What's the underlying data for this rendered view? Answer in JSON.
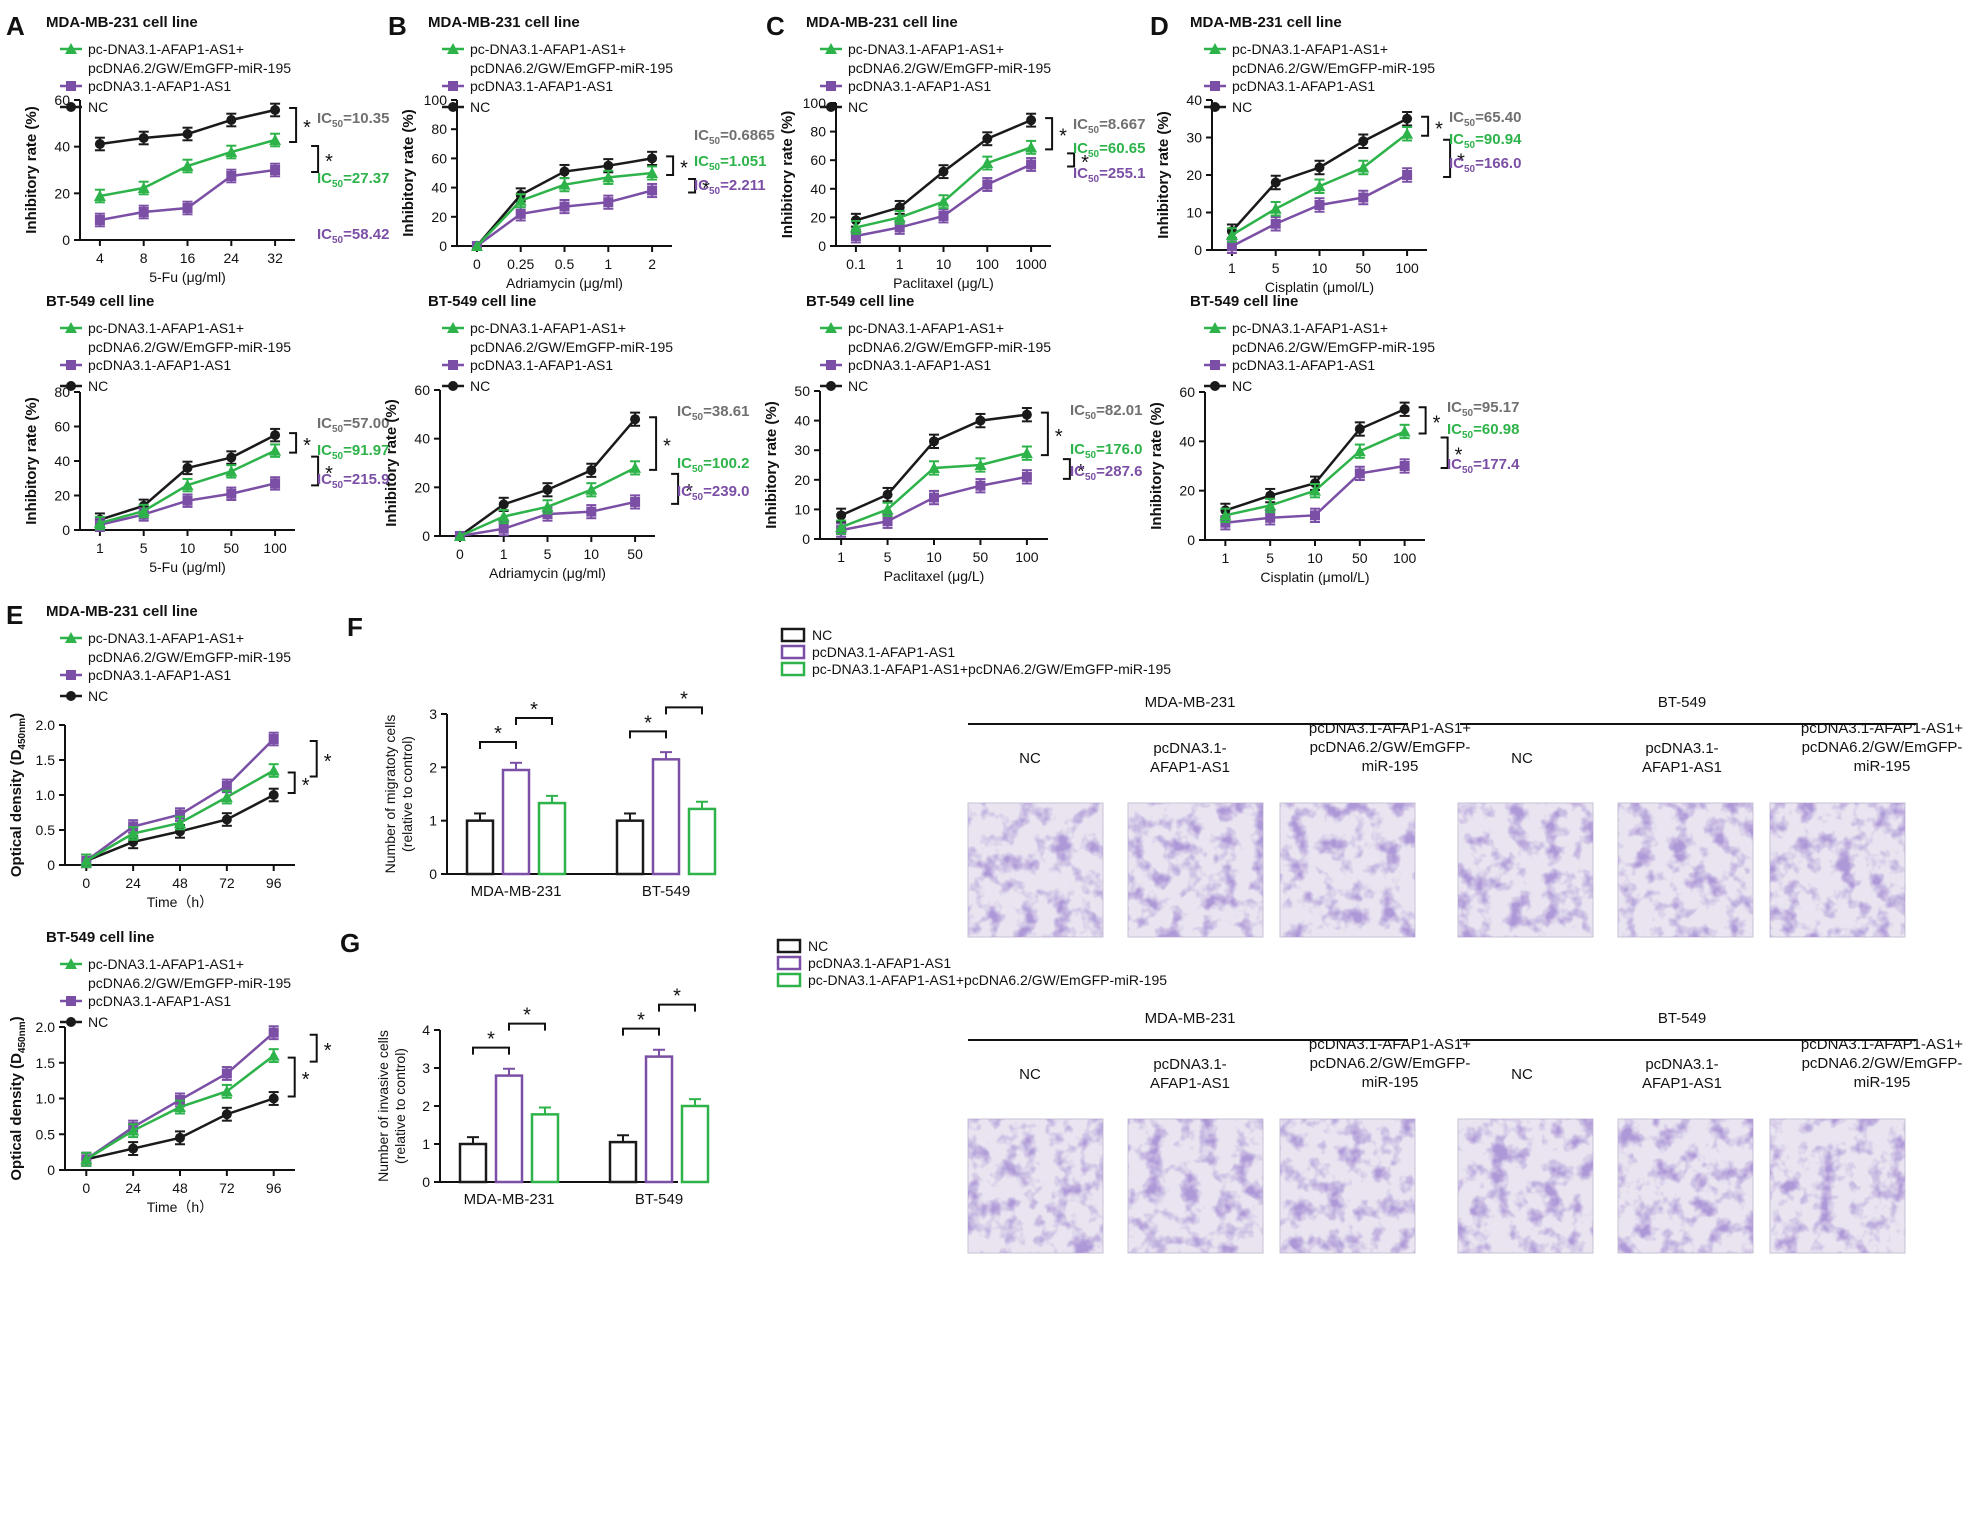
{
  "colors": {
    "NC": "#1a1a1a",
    "oe": "#7b4fa5",
    "combo": "#2db34a",
    "ic_nc": "#707070"
  },
  "legend_labels": {
    "combo_a": "pc-DNA3.1-AFAP1-AS1+",
    "combo_b": "pcDNA6.2/GW/EmGFP-miR-195",
    "combo_one": "pc-DNA3.1-AFAP1-AS1+pcDNA6.2/GW/EmGFP-miR-195",
    "oe": "pcDNA3.1-AFAP1-AS1",
    "nc": "NC"
  },
  "sig": "*",
  "ic_prefix": "IC",
  "ic_sub": "50",
  "chart_data": [
    {
      "id": "A1",
      "type": "line",
      "panel": "A",
      "title": "MDA-MB-231 cell line",
      "xlabel": "5-Fu (μg/ml)",
      "ylabel": "Inhibitory rate (%)",
      "ylim": [
        0,
        70
      ],
      "yticks": [
        "0",
        "20",
        "40",
        "60"
      ],
      "categories": [
        "4",
        "8",
        "16",
        "24",
        "32"
      ],
      "series": [
        {
          "name": "NC",
          "values": [
            48,
            51,
            53,
            60,
            65
          ]
        },
        {
          "name": "pcDNA3.1-AFAP1-AS1",
          "values": [
            10,
            14,
            16,
            32,
            35
          ]
        },
        {
          "name": "pc-DNA3.1-AFAP1-AS1+pcDNA6.2/GW/EmGFP-miR-195",
          "values": [
            22,
            26,
            37,
            44,
            50
          ]
        }
      ],
      "ic50": [
        "=10.35",
        "=58.42",
        "=27.37"
      ]
    },
    {
      "id": "B1",
      "type": "line",
      "panel": "B",
      "title": "MDA-MB-231 cell line",
      "xlabel": "Adriamycin (μg/ml)",
      "ylabel": "Inhibitory rate (%)",
      "ylim": [
        0,
        100
      ],
      "yticks": [
        "0",
        "20",
        "40",
        "60",
        "80",
        "100"
      ],
      "categories": [
        "0",
        "0.25",
        "0.5",
        "1",
        "2"
      ],
      "series": [
        {
          "name": "NC",
          "values": [
            0,
            35,
            51,
            55,
            60
          ]
        },
        {
          "name": "pcDNA3.1-AFAP1-AS1",
          "values": [
            0,
            22,
            27,
            30,
            38
          ]
        },
        {
          "name": "pc-DNA3.1-AFAP1-AS1+pcDNA6.2/GW/EmGFP-miR-195",
          "values": [
            0,
            31,
            42,
            47,
            50
          ]
        }
      ],
      "ic50": [
        "=0.6865",
        "=2.211",
        "=1.051"
      ]
    },
    {
      "id": "C1",
      "type": "line",
      "panel": "C",
      "title": "MDA-MB-231 cell line",
      "xlabel": "Paclitaxel (μg/L)",
      "ylabel": "Inhibitory rate (%)",
      "ylim": [
        0,
        100
      ],
      "yticks": [
        "0",
        "20",
        "40",
        "60",
        "80",
        "100"
      ],
      "categories": [
        "0.1",
        "1",
        "10",
        "100",
        "1000"
      ],
      "series": [
        {
          "name": "NC",
          "values": [
            18,
            27,
            52,
            75,
            88
          ]
        },
        {
          "name": "pcDNA3.1-AFAP1-AS1",
          "values": [
            7,
            13,
            21,
            43,
            57
          ]
        },
        {
          "name": "pc-DNA3.1-AFAP1-AS1+pcDNA6.2/GW/EmGFP-miR-195",
          "values": [
            13,
            20,
            31,
            58,
            69
          ]
        }
      ],
      "ic50": [
        "=8.667",
        "=255.1",
        "=60.65"
      ]
    },
    {
      "id": "D1",
      "type": "line",
      "panel": "D",
      "title": "MDA-MB-231 cell line",
      "xlabel": "Cisplatin (μmol/L)",
      "ylabel": "Inhibitory rate (%)",
      "ylim": [
        0,
        40
      ],
      "yticks": [
        "0",
        "10",
        "20",
        "30",
        "40"
      ],
      "categories": [
        "1",
        "5",
        "10",
        "50",
        "100"
      ],
      "series": [
        {
          "name": "NC",
          "values": [
            5,
            18,
            22,
            29,
            35
          ]
        },
        {
          "name": "pcDNA3.1-AFAP1-AS1",
          "values": [
            1,
            7,
            12,
            14,
            20
          ]
        },
        {
          "name": "pc-DNA3.1-AFAP1-AS1+pcDNA6.2/GW/EmGFP-miR-195",
          "values": [
            4,
            11,
            17,
            22,
            31
          ]
        }
      ],
      "ic50": [
        "=65.40",
        "=166.0",
        "=90.94"
      ]
    },
    {
      "id": "A2",
      "type": "line",
      "panel": "",
      "title": "BT-549 cell line",
      "xlabel": "5-Fu (μg/ml)",
      "ylabel": "Inhibitory rate (%)",
      "ylim": [
        0,
        80
      ],
      "yticks": [
        "0",
        "20",
        "40",
        "60",
        "80"
      ],
      "categories": [
        "1",
        "5",
        "10",
        "50",
        "100"
      ],
      "series": [
        {
          "name": "NC",
          "values": [
            6,
            14,
            36,
            42,
            55
          ]
        },
        {
          "name": "pcDNA3.1-AFAP1-AS1",
          "values": [
            3,
            9,
            17,
            21,
            27
          ]
        },
        {
          "name": "pc-DNA3.1-AFAP1-AS1+pcDNA6.2/GW/EmGFP-miR-195",
          "values": [
            4,
            11,
            26,
            34,
            46
          ]
        }
      ],
      "ic50": [
        "=57.00",
        "=215.9",
        "=91.97"
      ]
    },
    {
      "id": "B2",
      "type": "line",
      "panel": "",
      "title": "BT-549 cell line",
      "xlabel": "Adriamycin (μg/ml)",
      "ylabel": "Inhibitory rate (%)",
      "ylim": [
        0,
        60
      ],
      "yticks": [
        "0",
        "20",
        "40",
        "60"
      ],
      "categories": [
        "0",
        "1",
        "5",
        "10",
        "50"
      ],
      "series": [
        {
          "name": "NC",
          "values": [
            0,
            13,
            19,
            27,
            48
          ]
        },
        {
          "name": "pcDNA3.1-AFAP1-AS1",
          "values": [
            0,
            3,
            9,
            10,
            14
          ]
        },
        {
          "name": "pc-DNA3.1-AFAP1-AS1+pcDNA6.2/GW/EmGFP-miR-195",
          "values": [
            0,
            8,
            12,
            19,
            28
          ]
        }
      ],
      "ic50": [
        "=38.61",
        "=239.0",
        "=100.2"
      ]
    },
    {
      "id": "C2",
      "type": "line",
      "panel": "",
      "title": "BT-549 cell line",
      "xlabel": "Paclitaxel (μg/L)",
      "ylabel": "Inhibitory rate (%)",
      "ylim": [
        0,
        50
      ],
      "yticks": [
        "0",
        "10",
        "20",
        "30",
        "40",
        "50"
      ],
      "categories": [
        "1",
        "5",
        "10",
        "50",
        "100"
      ],
      "series": [
        {
          "name": "NC",
          "values": [
            8,
            15,
            33,
            40,
            42
          ]
        },
        {
          "name": "pcDNA3.1-AFAP1-AS1",
          "values": [
            3,
            6,
            14,
            18,
            21
          ]
        },
        {
          "name": "pc-DNA3.1-AFAP1-AS1+pcDNA6.2/GW/EmGFP-miR-195",
          "values": [
            4,
            10,
            24,
            25,
            29
          ]
        }
      ],
      "ic50": [
        "=82.01",
        "=287.6",
        "=176.0"
      ]
    },
    {
      "id": "D2",
      "type": "line",
      "panel": "",
      "title": "BT-549 cell line",
      "xlabel": "Cisplatin (μmol/L)",
      "ylabel": "Inhibitory rate (%)",
      "ylim": [
        0,
        60
      ],
      "yticks": [
        "0",
        "20",
        "40",
        "60"
      ],
      "categories": [
        "1",
        "5",
        "10",
        "50",
        "100"
      ],
      "series": [
        {
          "name": "NC",
          "values": [
            12,
            18,
            23,
            45,
            53
          ]
        },
        {
          "name": "pcDNA3.1-AFAP1-AS1",
          "values": [
            7,
            9,
            10,
            27,
            30
          ]
        },
        {
          "name": "pc-DNA3.1-AFAP1-AS1+pcDNA6.2/GW/EmGFP-miR-195",
          "values": [
            10,
            14,
            20,
            36,
            44
          ]
        }
      ],
      "ic50": [
        "=95.17",
        "=177.4",
        "=60.98"
      ]
    },
    {
      "id": "E1",
      "type": "line",
      "panel": "E",
      "title": "MDA-MB-231 cell line",
      "xlabel": "Time（h）",
      "ylabel": "Optical density (D",
      "ylabel_sub": "450nm",
      "ylabel_end": ")",
      "ylim": [
        0,
        2.0
      ],
      "yticks": [
        "0",
        "0.5",
        "1.0",
        "1.5",
        "2.0"
      ],
      "categories": [
        "0",
        "24",
        "48",
        "72",
        "96"
      ],
      "series": [
        {
          "name": "NC",
          "values": [
            0.06,
            0.33,
            0.48,
            0.65,
            1.0
          ]
        },
        {
          "name": "pcDNA3.1-AFAP1-AS1",
          "values": [
            0.06,
            0.55,
            0.72,
            1.13,
            1.8
          ]
        },
        {
          "name": "pc-DNA3.1-AFAP1-AS1+pcDNA6.2/GW/EmGFP-miR-195",
          "values": [
            0.06,
            0.45,
            0.6,
            0.97,
            1.35
          ]
        }
      ]
    },
    {
      "id": "E2",
      "type": "line",
      "panel": "",
      "title": "BT-549 cell line",
      "xlabel": "Time（h）",
      "ylabel": "Optical density (D",
      "ylabel_sub": "450nm",
      "ylabel_end": ")",
      "ylim": [
        0,
        2.0
      ],
      "yticks": [
        "0",
        "0.5",
        "1.0",
        "1.5",
        "2.0"
      ],
      "categories": [
        "0",
        "24",
        "48",
        "72",
        "96"
      ],
      "series": [
        {
          "name": "NC",
          "values": [
            0.15,
            0.3,
            0.45,
            0.78,
            1.0
          ]
        },
        {
          "name": "pcDNA3.1-AFAP1-AS1",
          "values": [
            0.15,
            0.6,
            0.98,
            1.35,
            1.92
          ]
        },
        {
          "name": "pc-DNA3.1-AFAP1-AS1+pcDNA6.2/GW/EmGFP-miR-195",
          "values": [
            0.15,
            0.55,
            0.88,
            1.1,
            1.6
          ]
        }
      ]
    },
    {
      "id": "F",
      "type": "bar",
      "panel": "F",
      "ylabel": "Number of migratoty cells",
      "ylabel2": "(relative to control)",
      "ylim": [
        0,
        3
      ],
      "yticks": [
        "0",
        "1",
        "2",
        "3"
      ],
      "categories": [
        "MDA-MB-231",
        "BT-549"
      ],
      "series": [
        {
          "name": "NC",
          "values": [
            1.0,
            1.0
          ]
        },
        {
          "name": "pcDNA3.1-AFAP1-AS1",
          "values": [
            1.95,
            2.15
          ]
        },
        {
          "name": "pc-DNA3.1-AFAP1-AS1+pcDNA6.2/GW/EmGFP-miR-195",
          "values": [
            1.33,
            1.22
          ]
        }
      ]
    },
    {
      "id": "G",
      "type": "bar",
      "panel": "G",
      "ylabel": "Number of invasive cells",
      "ylabel2": "(relative to control)",
      "ylim": [
        0,
        4
      ],
      "yticks": [
        "0",
        "1",
        "2",
        "3",
        "4"
      ],
      "categories": [
        "MDA-MB-231",
        "BT-549"
      ],
      "series": [
        {
          "name": "NC",
          "values": [
            1.0,
            1.05
          ]
        },
        {
          "name": "pcDNA3.1-AFAP1-AS1",
          "values": [
            2.8,
            3.3
          ]
        },
        {
          "name": "pc-DNA3.1-AFAP1-AS1+pcDNA6.2/GW/EmGFP-miR-195",
          "values": [
            1.78,
            2.0
          ]
        }
      ]
    }
  ],
  "micro": {
    "F": {
      "groups": [
        {
          "name": "MDA-MB-231",
          "cols": [
            [
              "NC"
            ],
            [
              "pcDNA3.1-",
              "AFAP1-AS1"
            ],
            [
              "pcDNA3.1-AFAP1-AS1+",
              "pcDNA6.2/GW/EmGFP-",
              "miR-195"
            ]
          ]
        },
        {
          "name": "BT-549",
          "cols": [
            [
              "NC"
            ],
            [
              "pcDNA3.1-",
              "AFAP1-AS1"
            ],
            [
              "pcDNA3.1-AFAP1-AS1+",
              "pcDNA6.2/GW/EmGFP-",
              "miR-195"
            ]
          ]
        }
      ]
    },
    "G": {
      "groups": [
        {
          "name": "MDA-MB-231",
          "cols": [
            [
              "NC"
            ],
            [
              "pcDNA3.1-",
              "AFAP1-AS1"
            ],
            [
              "pcDNA3.1-AFAP1-AS1+",
              "pcDNA6.2/GW/EmGFP-",
              "miR-195"
            ]
          ]
        },
        {
          "name": "BT-549",
          "cols": [
            [
              "NC"
            ],
            [
              "pcDNA3.1-",
              "AFAP1-AS1"
            ],
            [
              "pcDNA3.1-AFAP1-AS1+",
              "pcDNA6.2/GW/EmGFP-",
              "miR-195"
            ]
          ]
        }
      ]
    }
  }
}
